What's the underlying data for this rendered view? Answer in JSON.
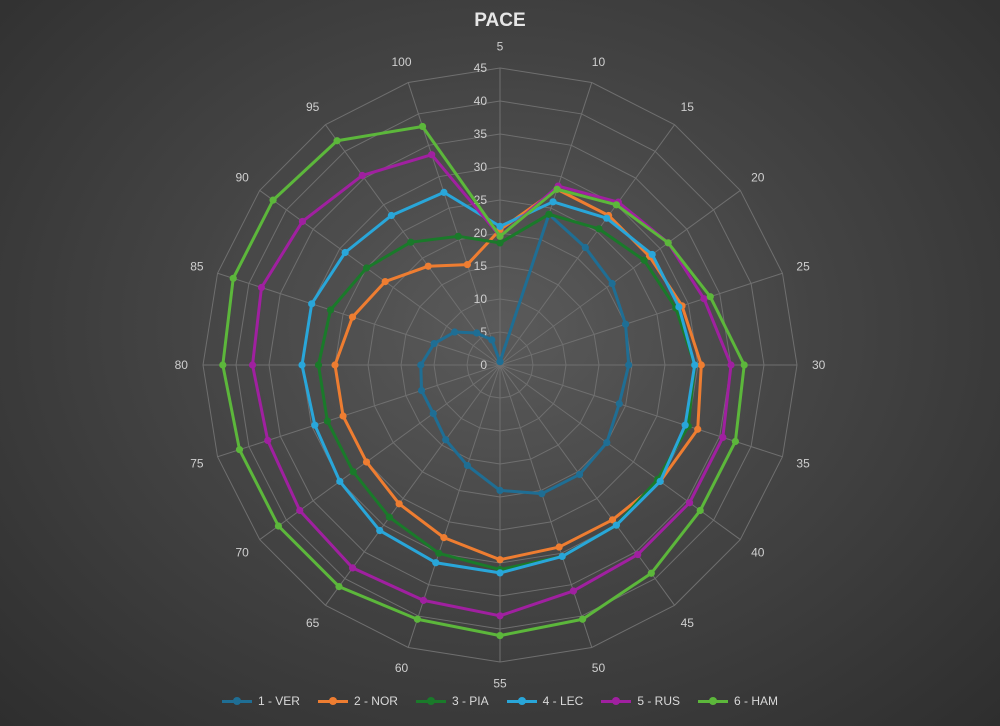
{
  "chart_data": {
    "type": "radar",
    "title": "PACE",
    "categories": [
      "5",
      "10",
      "15",
      "20",
      "25",
      "30",
      "35",
      "40",
      "45",
      "50",
      "55",
      "60",
      "65",
      "70",
      "75",
      "80",
      "85",
      "90",
      "95",
      "100"
    ],
    "radial_axis": {
      "min": 0,
      "max": 45,
      "step": 5
    },
    "legend_position": "bottom",
    "series": [
      {
        "name": "1 - VER",
        "color": "#1f6e94",
        "values": [
          0.5,
          24,
          22,
          21,
          20,
          19.5,
          19,
          20,
          20.5,
          20.5,
          19,
          16,
          14,
          12.5,
          12.5,
          12,
          10.5,
          8.5,
          6,
          4
        ]
      },
      {
        "name": "2 - NOR",
        "color": "#ee7d31",
        "values": [
          20.5,
          28,
          28,
          28,
          29,
          30.5,
          31.5,
          30,
          29,
          29,
          29.5,
          27.5,
          26,
          25,
          25,
          25,
          23.5,
          21.5,
          18.5,
          16
        ]
      },
      {
        "name": "3 - PIA",
        "color": "#1a7a2a",
        "values": [
          18.5,
          24,
          25.5,
          27,
          28,
          29.5,
          30,
          29.5,
          30,
          30.5,
          31,
          30,
          28.5,
          27.5,
          27.5,
          27.5,
          27,
          25,
          23,
          20.5
        ]
      },
      {
        "name": "4 - LEC",
        "color": "#29a6d9",
        "values": [
          21,
          26,
          27.5,
          28.5,
          28.5,
          29.5,
          29.5,
          30,
          30,
          30.5,
          31.5,
          31.5,
          31,
          30,
          29.5,
          30,
          30,
          29,
          28,
          27.5
        ]
      },
      {
        "name": "5 - RUS",
        "color": "#a020a0",
        "values": [
          19.5,
          28.5,
          30.5,
          31.5,
          32.5,
          35,
          35.5,
          35.5,
          35.5,
          36,
          38,
          37.5,
          38,
          37.5,
          37,
          37.5,
          38,
          37,
          35.5,
          33.5
        ]
      },
      {
        "name": "6 - HAM",
        "color": "#5cb73b",
        "values": [
          19.5,
          28,
          30,
          31.5,
          33.5,
          37,
          37.5,
          37.5,
          39,
          40.5,
          41,
          40.5,
          41.5,
          41.5,
          41.5,
          42,
          42.5,
          42.5,
          42,
          38
        ]
      }
    ]
  }
}
